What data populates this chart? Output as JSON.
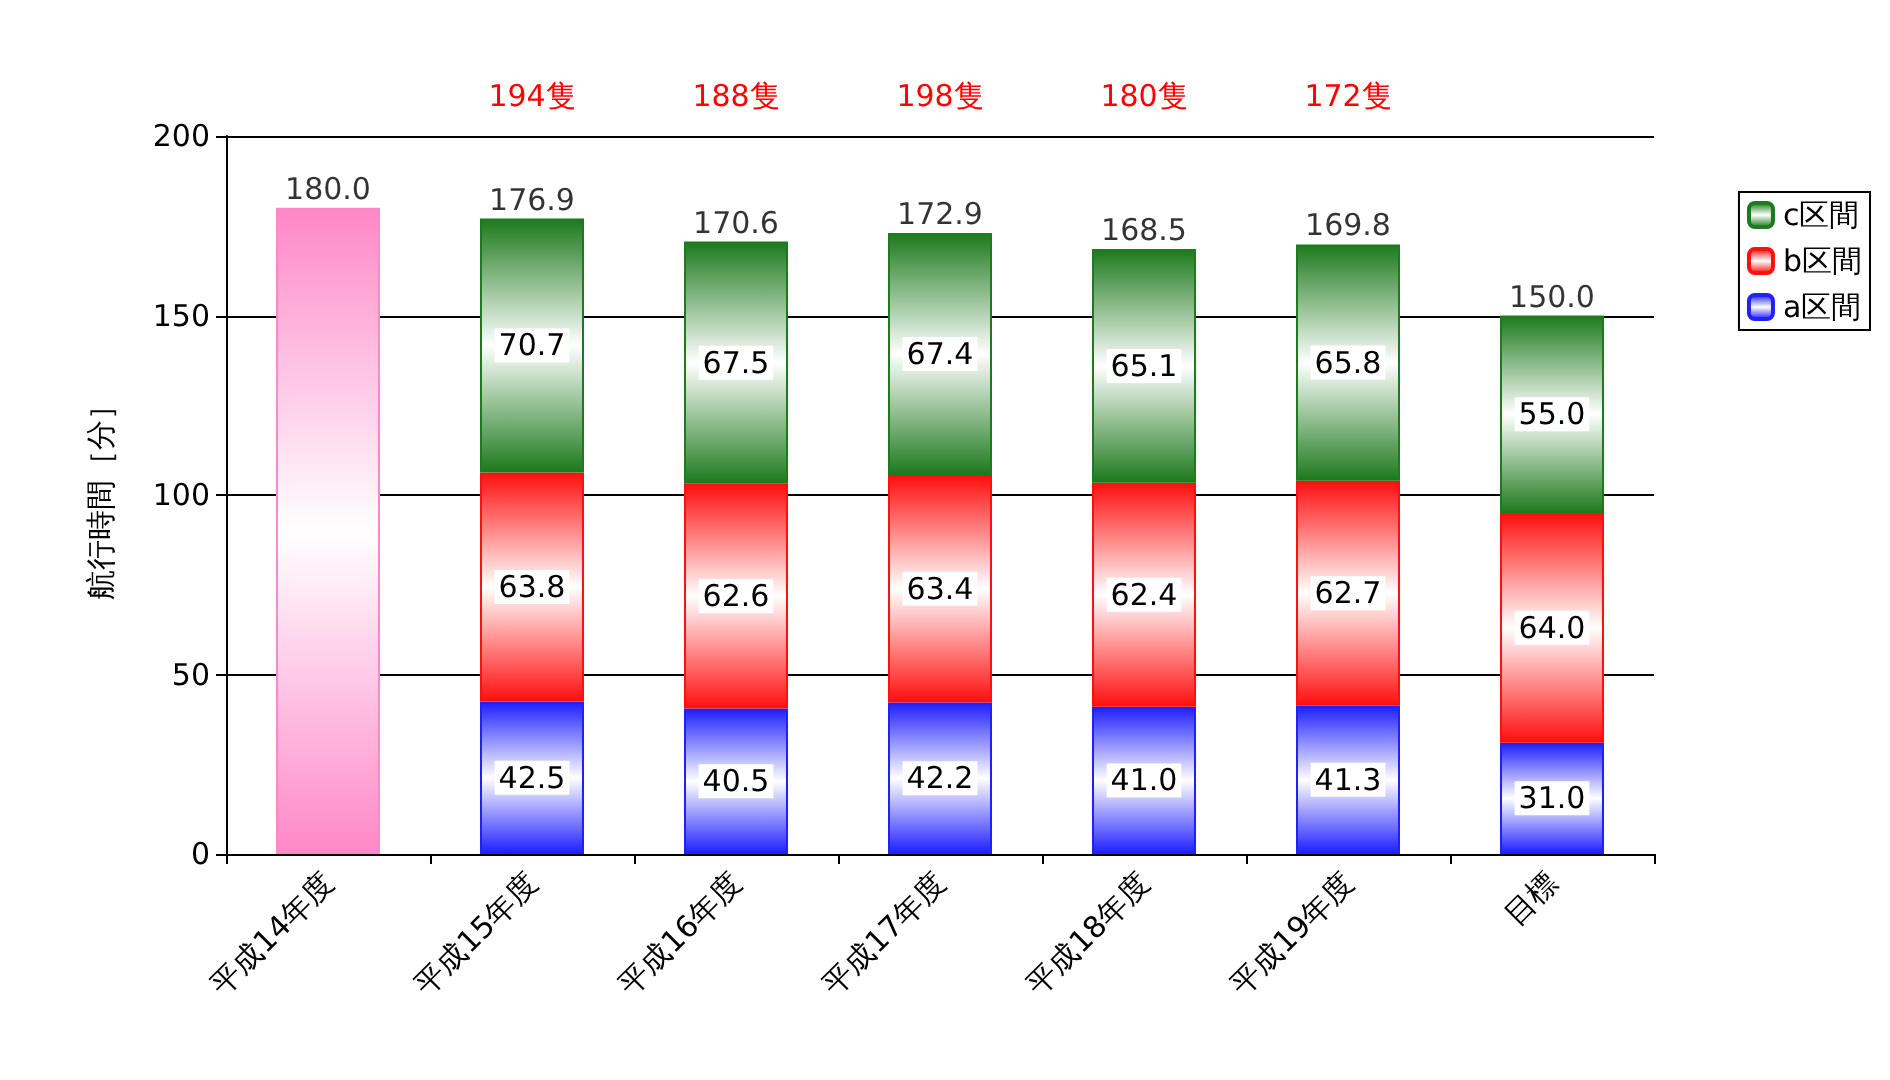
{
  "chart_data": {
    "type": "bar",
    "stacked": true,
    "ylabel": "航行時間［分］",
    "categories": [
      "平成14年度",
      "平成15年度",
      "平成16年度",
      "平成17年度",
      "平成18年度",
      "平成19年度",
      "目標"
    ],
    "series": [
      {
        "color": "#ff88c8",
        "values": [
          180.0,
          null,
          null,
          null,
          null,
          null,
          null
        ]
      },
      {
        "name": "a区間",
        "color": "#2020ff",
        "values": [
          null,
          42.5,
          40.5,
          42.2,
          41.0,
          41.3,
          31.0
        ],
        "value_labels": [
          null,
          "42.5",
          "40.5",
          "42.2",
          "41.0",
          "41.3",
          "31.0"
        ]
      },
      {
        "name": "b区間",
        "color": "#ff1010",
        "values": [
          null,
          63.8,
          62.6,
          63.4,
          62.4,
          62.7,
          64.0
        ],
        "value_labels": [
          null,
          "63.8",
          "62.6",
          "63.4",
          "62.4",
          "62.7",
          "64.0"
        ]
      },
      {
        "name": "c区間",
        "color": "#1e7a1e",
        "values": [
          null,
          70.7,
          67.5,
          67.4,
          65.1,
          65.8,
          55.0
        ],
        "value_labels": [
          null,
          "70.7",
          "67.5",
          "67.4",
          "65.1",
          "65.8",
          "55.0"
        ]
      }
    ],
    "totals": [
      "180.0",
      "176.9",
      "170.6",
      "172.9",
      "168.5",
      "169.8",
      "150.0"
    ],
    "annotations": [
      "194隻",
      "188隻",
      "198隻",
      "180隻",
      "172隻"
    ],
    "ylim": [
      0,
      200
    ],
    "yticks": [
      0,
      50,
      100,
      150,
      200
    ],
    "grid": "y",
    "legend": "right"
  }
}
